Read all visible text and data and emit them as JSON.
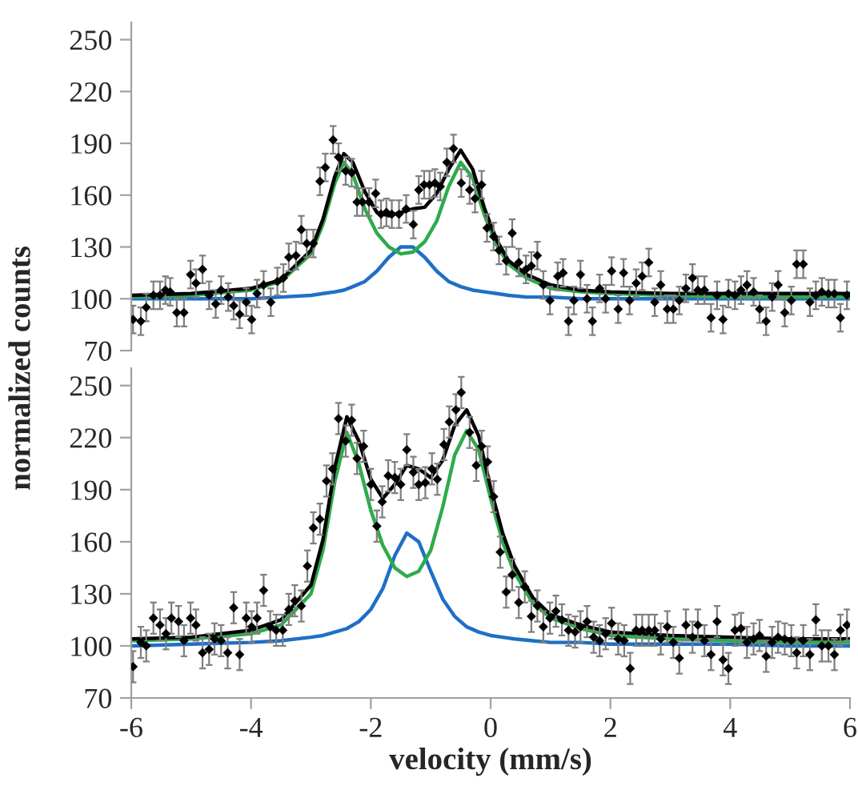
{
  "chart_data": [
    {
      "type": "scatter",
      "ylabel": "normalized counts",
      "xlim": [
        -6,
        6
      ],
      "ylim": [
        70,
        260
      ],
      "yticks": [
        70,
        100,
        130,
        160,
        190,
        220,
        250
      ],
      "tick_labels": "y",
      "grid": false,
      "legend": false,
      "series": [
        {
          "color": "#000000",
          "marker": "diamond",
          "x": [
            -5.97,
            -5.84,
            -5.75,
            -5.63,
            -5.52,
            -5.43,
            -5.35,
            -5.24,
            -5.12,
            -5.01,
            -4.92,
            -4.81,
            -4.7,
            -4.59,
            -4.5,
            -4.38,
            -4.29,
            -4.19,
            -4.08,
            -3.99,
            -3.9,
            -3.79,
            -3.67,
            -3.56,
            -3.46,
            -3.37,
            -3.25,
            -3.16,
            -3.07,
            -2.96,
            -2.85,
            -2.76,
            -2.63,
            -2.54,
            -2.42,
            -2.32,
            -2.23,
            -2.14,
            -2.03,
            -1.92,
            -1.83,
            -1.74,
            -1.65,
            -1.53,
            -1.41,
            -1.29,
            -1.2,
            -1.11,
            -1.02,
            -0.93,
            -0.84,
            -0.73,
            -0.62,
            -0.49,
            -0.35,
            -0.26,
            -0.15,
            -0.06,
            0.05,
            0.14,
            0.26,
            0.36,
            0.47,
            0.59,
            0.68,
            0.78,
            0.88,
            0.99,
            1.12,
            1.21,
            1.3,
            1.39,
            1.5,
            1.61,
            1.7,
            1.82,
            1.92,
            2.02,
            2.13,
            2.22,
            2.32,
            2.43,
            2.53,
            2.64,
            2.74,
            2.84,
            2.95,
            3.05,
            3.15,
            3.26,
            3.37,
            3.46,
            3.57,
            3.68,
            3.78,
            3.88,
            3.97,
            4.08,
            4.18,
            4.28,
            4.39,
            4.49,
            4.6,
            4.7,
            4.8,
            4.91,
            5.02,
            5.11,
            5.22,
            5.33,
            5.43,
            5.53,
            5.64,
            5.74,
            5.84,
            5.95
          ],
          "values": [
            88,
            87,
            95,
            102,
            102,
            105,
            104,
            92,
            92,
            114,
            109,
            117,
            102,
            97,
            105,
            101,
            96,
            91,
            98,
            88,
            103,
            108,
            98,
            110,
            112,
            124,
            125,
            140,
            132,
            132,
            168,
            176,
            192,
            182,
            174,
            173,
            156,
            156,
            156,
            161,
            149,
            150,
            149,
            149,
            152,
            143,
            163,
            166,
            166,
            167,
            165,
            179,
            187,
            167,
            163,
            158,
            166,
            141,
            136,
            128,
            122,
            138,
            121,
            117,
            119,
            125,
            108,
            99,
            113,
            115,
            87,
            99,
            114,
            100,
            87,
            106,
            100,
            116,
            94,
            115,
            99,
            109,
            113,
            121,
            98,
            108,
            94,
            94,
            99,
            106,
            112,
            105,
            105,
            89,
            102,
            88,
            103,
            102,
            105,
            108,
            104,
            94,
            87,
            101,
            108,
            92,
            99,
            120,
            120,
            98,
            102,
            104,
            103,
            103,
            89,
            102
          ],
          "errors": [
            8,
            8,
            8,
            8,
            8,
            8,
            8,
            8,
            8,
            8,
            8,
            8,
            8,
            8,
            8,
            8,
            8,
            8,
            8,
            8,
            8,
            8,
            8,
            8,
            8,
            8,
            8,
            8,
            8,
            8,
            8,
            8,
            8,
            8,
            8,
            8,
            8,
            8,
            8,
            8,
            8,
            8,
            8,
            8,
            8,
            8,
            8,
            8,
            8,
            8,
            8,
            8,
            8,
            8,
            8,
            8,
            8,
            8,
            8,
            8,
            8,
            8,
            8,
            8,
            8,
            8,
            8,
            8,
            8,
            8,
            8,
            8,
            8,
            8,
            8,
            8,
            8,
            8,
            8,
            8,
            8,
            8,
            8,
            8,
            8,
            8,
            8,
            8,
            8,
            8,
            8,
            8,
            8,
            8,
            8,
            8,
            8,
            8,
            8,
            8,
            8,
            8,
            8,
            8,
            8,
            8,
            8,
            8,
            8,
            8,
            8,
            8,
            8,
            8,
            8,
            8
          ]
        },
        {
          "type": "line",
          "color": "#1f6fc5",
          "marker": "none",
          "line_style": "solid",
          "x": [
            -6,
            -5,
            -4,
            -3.5,
            -3,
            -2.8,
            -2.6,
            -2.45,
            -2.3,
            -2.1,
            -1.9,
            -1.7,
            -1.5,
            -1.3,
            -1.1,
            -0.9,
            -0.7,
            -0.5,
            -0.3,
            -0.1,
            0.1,
            0.3,
            0.6,
            1,
            1.5,
            2,
            3,
            4,
            5,
            6
          ],
          "values": [
            100,
            100,
            100,
            101,
            102,
            103,
            104,
            105,
            107,
            110,
            116,
            124,
            130,
            130,
            124,
            116,
            110,
            107,
            105,
            104,
            103,
            102,
            101,
            101,
            100,
            100,
            100,
            100,
            100,
            100
          ]
        },
        {
          "type": "line",
          "color": "#2eab4b",
          "marker": "none",
          "line_style": "solid",
          "x": [
            -6,
            -5,
            -4,
            -3.5,
            -3,
            -2.8,
            -2.6,
            -2.45,
            -2.3,
            -2.1,
            -1.9,
            -1.7,
            -1.5,
            -1.3,
            -1.1,
            -0.9,
            -0.7,
            -0.5,
            -0.3,
            -0.1,
            0.1,
            0.3,
            0.6,
            1,
            1.5,
            2,
            3,
            4,
            5,
            6
          ],
          "values": [
            101,
            102,
            105,
            110,
            126,
            143,
            167,
            179,
            172,
            152,
            138,
            130,
            126,
            127,
            133,
            145,
            165,
            179,
            170,
            148,
            131,
            120,
            112,
            106,
            104,
            103,
            102,
            101,
            101,
            101
          ]
        },
        {
          "type": "line",
          "color": "#000000",
          "marker": "none",
          "line_style": "solid",
          "x": [
            -6,
            -5,
            -4,
            -3.5,
            -3,
            -2.8,
            -2.6,
            -2.45,
            -2.3,
            -2.1,
            -1.9,
            -1.7,
            -1.5,
            -1.3,
            -1.1,
            -0.9,
            -0.7,
            -0.5,
            -0.3,
            -0.1,
            0.1,
            0.3,
            0.6,
            1,
            1.5,
            2,
            3,
            4,
            5,
            6
          ],
          "values": [
            102,
            103,
            106,
            111,
            128,
            146,
            171,
            184,
            179,
            162,
            150,
            148,
            150,
            152,
            153,
            161,
            175,
            186,
            175,
            152,
            134,
            122,
            114,
            108,
            105,
            104,
            103,
            103,
            103,
            103
          ]
        }
      ]
    },
    {
      "type": "scatter",
      "xlabel": "velocity (mm/s)",
      "xlim": [
        -6,
        6
      ],
      "xticks": [
        -6,
        -4,
        -2,
        0,
        2,
        4,
        6
      ],
      "ylim": [
        70,
        260
      ],
      "yticks": [
        70,
        100,
        130,
        160,
        190,
        220,
        250
      ],
      "grid": false,
      "legend": false,
      "series": [
        {
          "color": "#000000",
          "marker": "diamond",
          "x": [
            -5.97,
            -5.84,
            -5.75,
            -5.63,
            -5.52,
            -5.42,
            -5.33,
            -5.21,
            -5.12,
            -5.01,
            -4.92,
            -4.81,
            -4.7,
            -4.61,
            -4.5,
            -4.39,
            -4.29,
            -4.19,
            -4.08,
            -3.99,
            -3.9,
            -3.79,
            -3.68,
            -3.58,
            -3.47,
            -3.37,
            -3.27,
            -3.16,
            -3.06,
            -2.96,
            -2.85,
            -2.74,
            -2.64,
            -2.54,
            -2.42,
            -2.32,
            -2.23,
            -2.12,
            -2.0,
            -1.9,
            -1.81,
            -1.71,
            -1.6,
            -1.5,
            -1.4,
            -1.29,
            -1.2,
            -1.09,
            -0.98,
            -0.89,
            -0.78,
            -0.69,
            -0.58,
            -0.49,
            -0.35,
            -0.24,
            -0.15,
            -0.05,
            0.05,
            0.16,
            0.26,
            0.36,
            0.47,
            0.57,
            0.68,
            0.78,
            0.88,
            0.99,
            1.09,
            1.19,
            1.3,
            1.41,
            1.5,
            1.61,
            1.72,
            1.82,
            1.92,
            2.02,
            2.13,
            2.23,
            2.33,
            2.43,
            2.53,
            2.64,
            2.74,
            2.84,
            2.95,
            3.05,
            3.15,
            3.26,
            3.37,
            3.46,
            3.57,
            3.68,
            3.78,
            3.88,
            3.97,
            4.08,
            4.18,
            4.28,
            4.39,
            4.49,
            4.6,
            4.7,
            4.8,
            4.91,
            5.02,
            5.11,
            5.22,
            5.33,
            5.43,
            5.53,
            5.64,
            5.74,
            5.84,
            5.95
          ],
          "values": [
            88,
            102,
            100,
            116,
            112,
            107,
            116,
            114,
            103,
            116,
            112,
            96,
            98,
            104,
            103,
            96,
            122,
            95,
            116,
            111,
            116,
            132,
            111,
            109,
            109,
            121,
            126,
            123,
            146,
            168,
            173,
            195,
            202,
            231,
            218,
            230,
            208,
            215,
            193,
            169,
            183,
            198,
            197,
            193,
            213,
            200,
            193,
            194,
            202,
            196,
            216,
            229,
            236,
            246,
            223,
            204,
            215,
            206,
            186,
            154,
            131,
            141,
            125,
            134,
            117,
            123,
            111,
            116,
            120,
            115,
            109,
            108,
            111,
            114,
            105,
            103,
            107,
            113,
            104,
            103,
            87,
            109,
            109,
            109,
            109,
            104,
            111,
            102,
            93,
            112,
            105,
            112,
            103,
            95,
            114,
            92,
            87,
            109,
            110,
            102,
            104,
            106,
            94,
            102,
            105,
            104,
            103,
            96,
            103,
            95,
            115,
            100,
            100,
            95,
            109,
            112
          ],
          "errors": [
            9,
            9,
            9,
            9,
            9,
            9,
            9,
            9,
            9,
            9,
            9,
            9,
            9,
            9,
            9,
            9,
            9,
            9,
            9,
            9,
            9,
            9,
            9,
            9,
            9,
            9,
            9,
            9,
            9,
            9,
            9,
            9,
            9,
            9,
            9,
            9,
            9,
            9,
            9,
            9,
            9,
            9,
            9,
            9,
            9,
            9,
            9,
            9,
            9,
            9,
            9,
            9,
            9,
            9,
            9,
            9,
            9,
            9,
            9,
            9,
            9,
            9,
            9,
            9,
            9,
            9,
            9,
            9,
            9,
            9,
            9,
            9,
            9,
            9,
            9,
            9,
            9,
            9,
            9,
            9,
            9,
            9,
            9,
            9,
            9,
            9,
            9,
            9,
            9,
            9,
            9,
            9,
            9,
            9,
            9,
            9,
            9,
            9,
            9,
            9,
            9,
            9,
            9,
            9,
            9,
            9,
            9,
            9,
            9,
            9,
            9,
            9,
            9,
            9,
            9,
            9
          ]
        },
        {
          "type": "line",
          "color": "#1f6fc5",
          "marker": "none",
          "line_style": "solid",
          "x": [
            -6,
            -5,
            -4,
            -3.5,
            -3,
            -2.8,
            -2.6,
            -2.4,
            -2.2,
            -2,
            -1.8,
            -1.6,
            -1.4,
            -1.2,
            -1,
            -0.8,
            -0.6,
            -0.4,
            -0.2,
            0,
            0.2,
            0.4,
            0.7,
            1,
            1.5,
            2,
            3,
            4,
            5,
            6
          ],
          "values": [
            100,
            101,
            102,
            103,
            105,
            106,
            108,
            110,
            114,
            121,
            133,
            152,
            165,
            160,
            143,
            127,
            117,
            111,
            108,
            106,
            105,
            104,
            103,
            102,
            102,
            101,
            101,
            101,
            100,
            100
          ]
        },
        {
          "type": "line",
          "color": "#2eab4b",
          "marker": "none",
          "line_style": "solid",
          "x": [
            -6,
            -5,
            -4,
            -3.5,
            -3,
            -2.8,
            -2.6,
            -2.4,
            -2.2,
            -2,
            -1.8,
            -1.6,
            -1.4,
            -1.2,
            -1,
            -0.8,
            -0.6,
            -0.4,
            -0.2,
            0,
            0.2,
            0.4,
            0.7,
            1,
            1.5,
            2,
            3,
            4,
            5,
            6
          ],
          "values": [
            103,
            104,
            107,
            112,
            130,
            155,
            195,
            223,
            205,
            178,
            158,
            145,
            140,
            143,
            155,
            180,
            210,
            224,
            213,
            185,
            160,
            142,
            125,
            116,
            110,
            106,
            104,
            103,
            102,
            102
          ]
        },
        {
          "type": "line",
          "color": "#000000",
          "marker": "none",
          "line_style": "solid",
          "x": [
            -6,
            -5,
            -4,
            -3.5,
            -3,
            -2.8,
            -2.6,
            -2.4,
            -2.2,
            -2,
            -1.8,
            -1.6,
            -1.4,
            -1.2,
            -1,
            -0.8,
            -0.6,
            -0.4,
            -0.2,
            0,
            0.2,
            0.4,
            0.7,
            1,
            1.5,
            2,
            3,
            4,
            5,
            6
          ],
          "values": [
            104,
            105,
            109,
            115,
            135,
            161,
            203,
            232,
            218,
            196,
            185,
            193,
            204,
            202,
            197,
            207,
            227,
            236,
            221,
            191,
            165,
            146,
            128,
            118,
            112,
            108,
            106,
            105,
            104,
            104
          ]
        }
      ]
    }
  ]
}
